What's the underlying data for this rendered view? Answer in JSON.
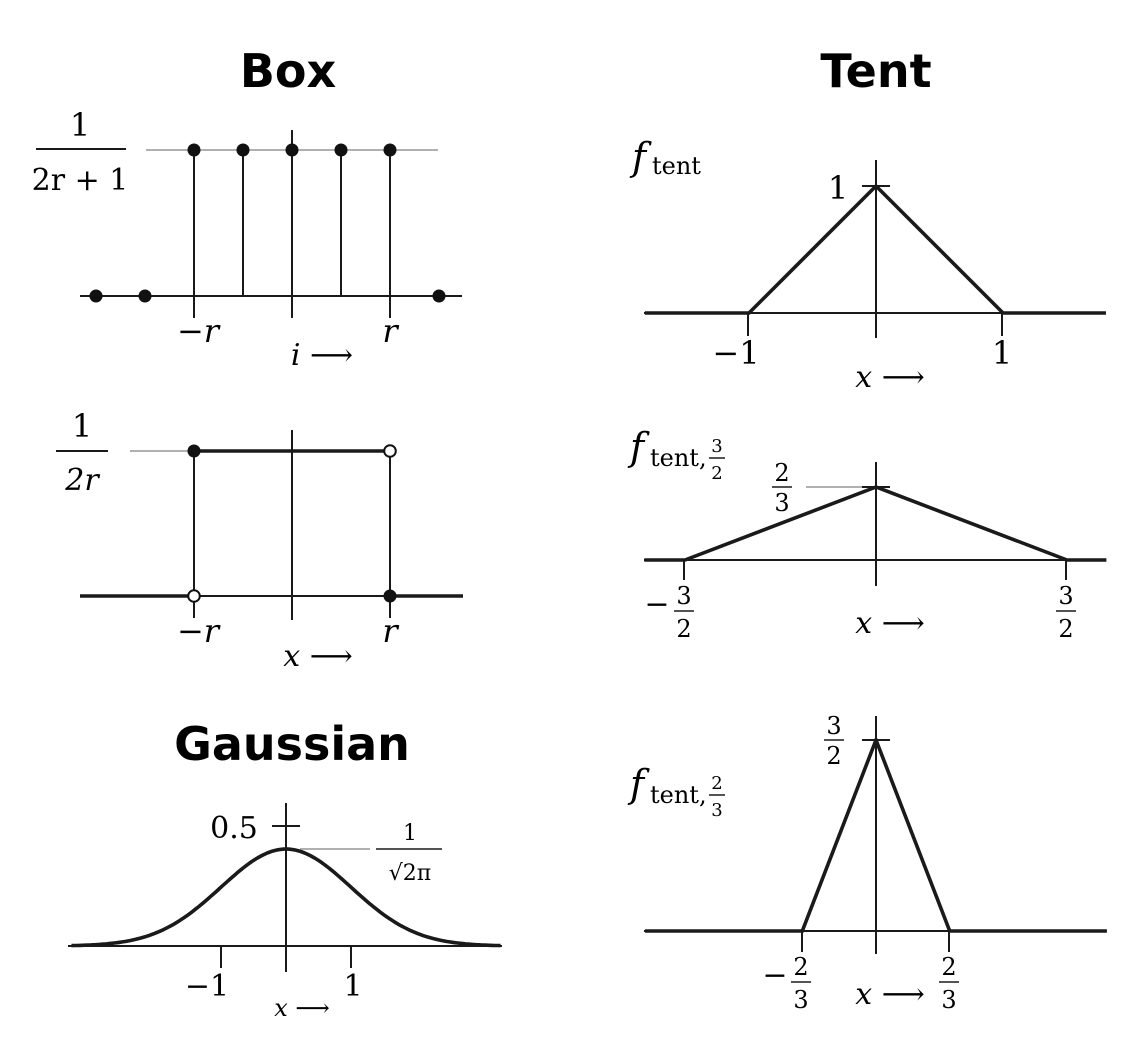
{
  "headings": {
    "box": "Box",
    "tent": "Tent",
    "gaussian": "Gaussian"
  },
  "box_discrete": {
    "y_label_num": "1",
    "y_label_den": "2r + 1",
    "tick_left": "−r",
    "tick_right": "r",
    "x_label": "i ⟶",
    "r": 2,
    "samples": [
      {
        "i": -4,
        "v": 0
      },
      {
        "i": -3,
        "v": 0
      },
      {
        "i": -2,
        "v": 1
      },
      {
        "i": -1,
        "v": 1
      },
      {
        "i": 0,
        "v": 1
      },
      {
        "i": 1,
        "v": 1
      },
      {
        "i": 2,
        "v": 1
      },
      {
        "i": 3,
        "v": 0
      }
    ]
  },
  "box_continuous": {
    "y_label_num": "1",
    "y_label_den": "2r",
    "tick_left": "−r",
    "tick_right": "r",
    "x_label": "x ⟶"
  },
  "tent_1": {
    "f_label": "f",
    "f_sub": "tent",
    "peak_label": "1",
    "tick_left": "−1",
    "tick_right": "1",
    "x_label": "x ⟶",
    "half_width": 1,
    "peak": 1
  },
  "tent_2": {
    "f_label": "f",
    "f_sub": "tent,",
    "f_sub_num": "3",
    "f_sub_den": "2",
    "peak_num": "2",
    "peak_den": "3",
    "tick_left_sign": "−",
    "tick_left_num": "3",
    "tick_left_den": "2",
    "tick_right_num": "3",
    "tick_right_den": "2",
    "x_label": "x ⟶",
    "half_width": 1.5,
    "peak": 0.6667
  },
  "tent_3": {
    "f_label": "f",
    "f_sub": "tent,",
    "f_sub_num": "2",
    "f_sub_den": "3",
    "peak_num": "3",
    "peak_den": "2",
    "tick_left_sign": "−",
    "tick_left_num": "2",
    "tick_left_den": "3",
    "tick_right_num": "2",
    "tick_right_den": "3",
    "x_label": "x ⟶",
    "half_width": 0.6667,
    "peak": 1.5
  },
  "gaussian": {
    "peak_tick_label": "0.5",
    "peak_value_num": "1",
    "peak_value_den": "√2π",
    "tick_left": "−1",
    "tick_right": "1",
    "x_label": "x ⟶",
    "sigma": 1,
    "x_range": [
      -3.3,
      3.3
    ]
  }
}
